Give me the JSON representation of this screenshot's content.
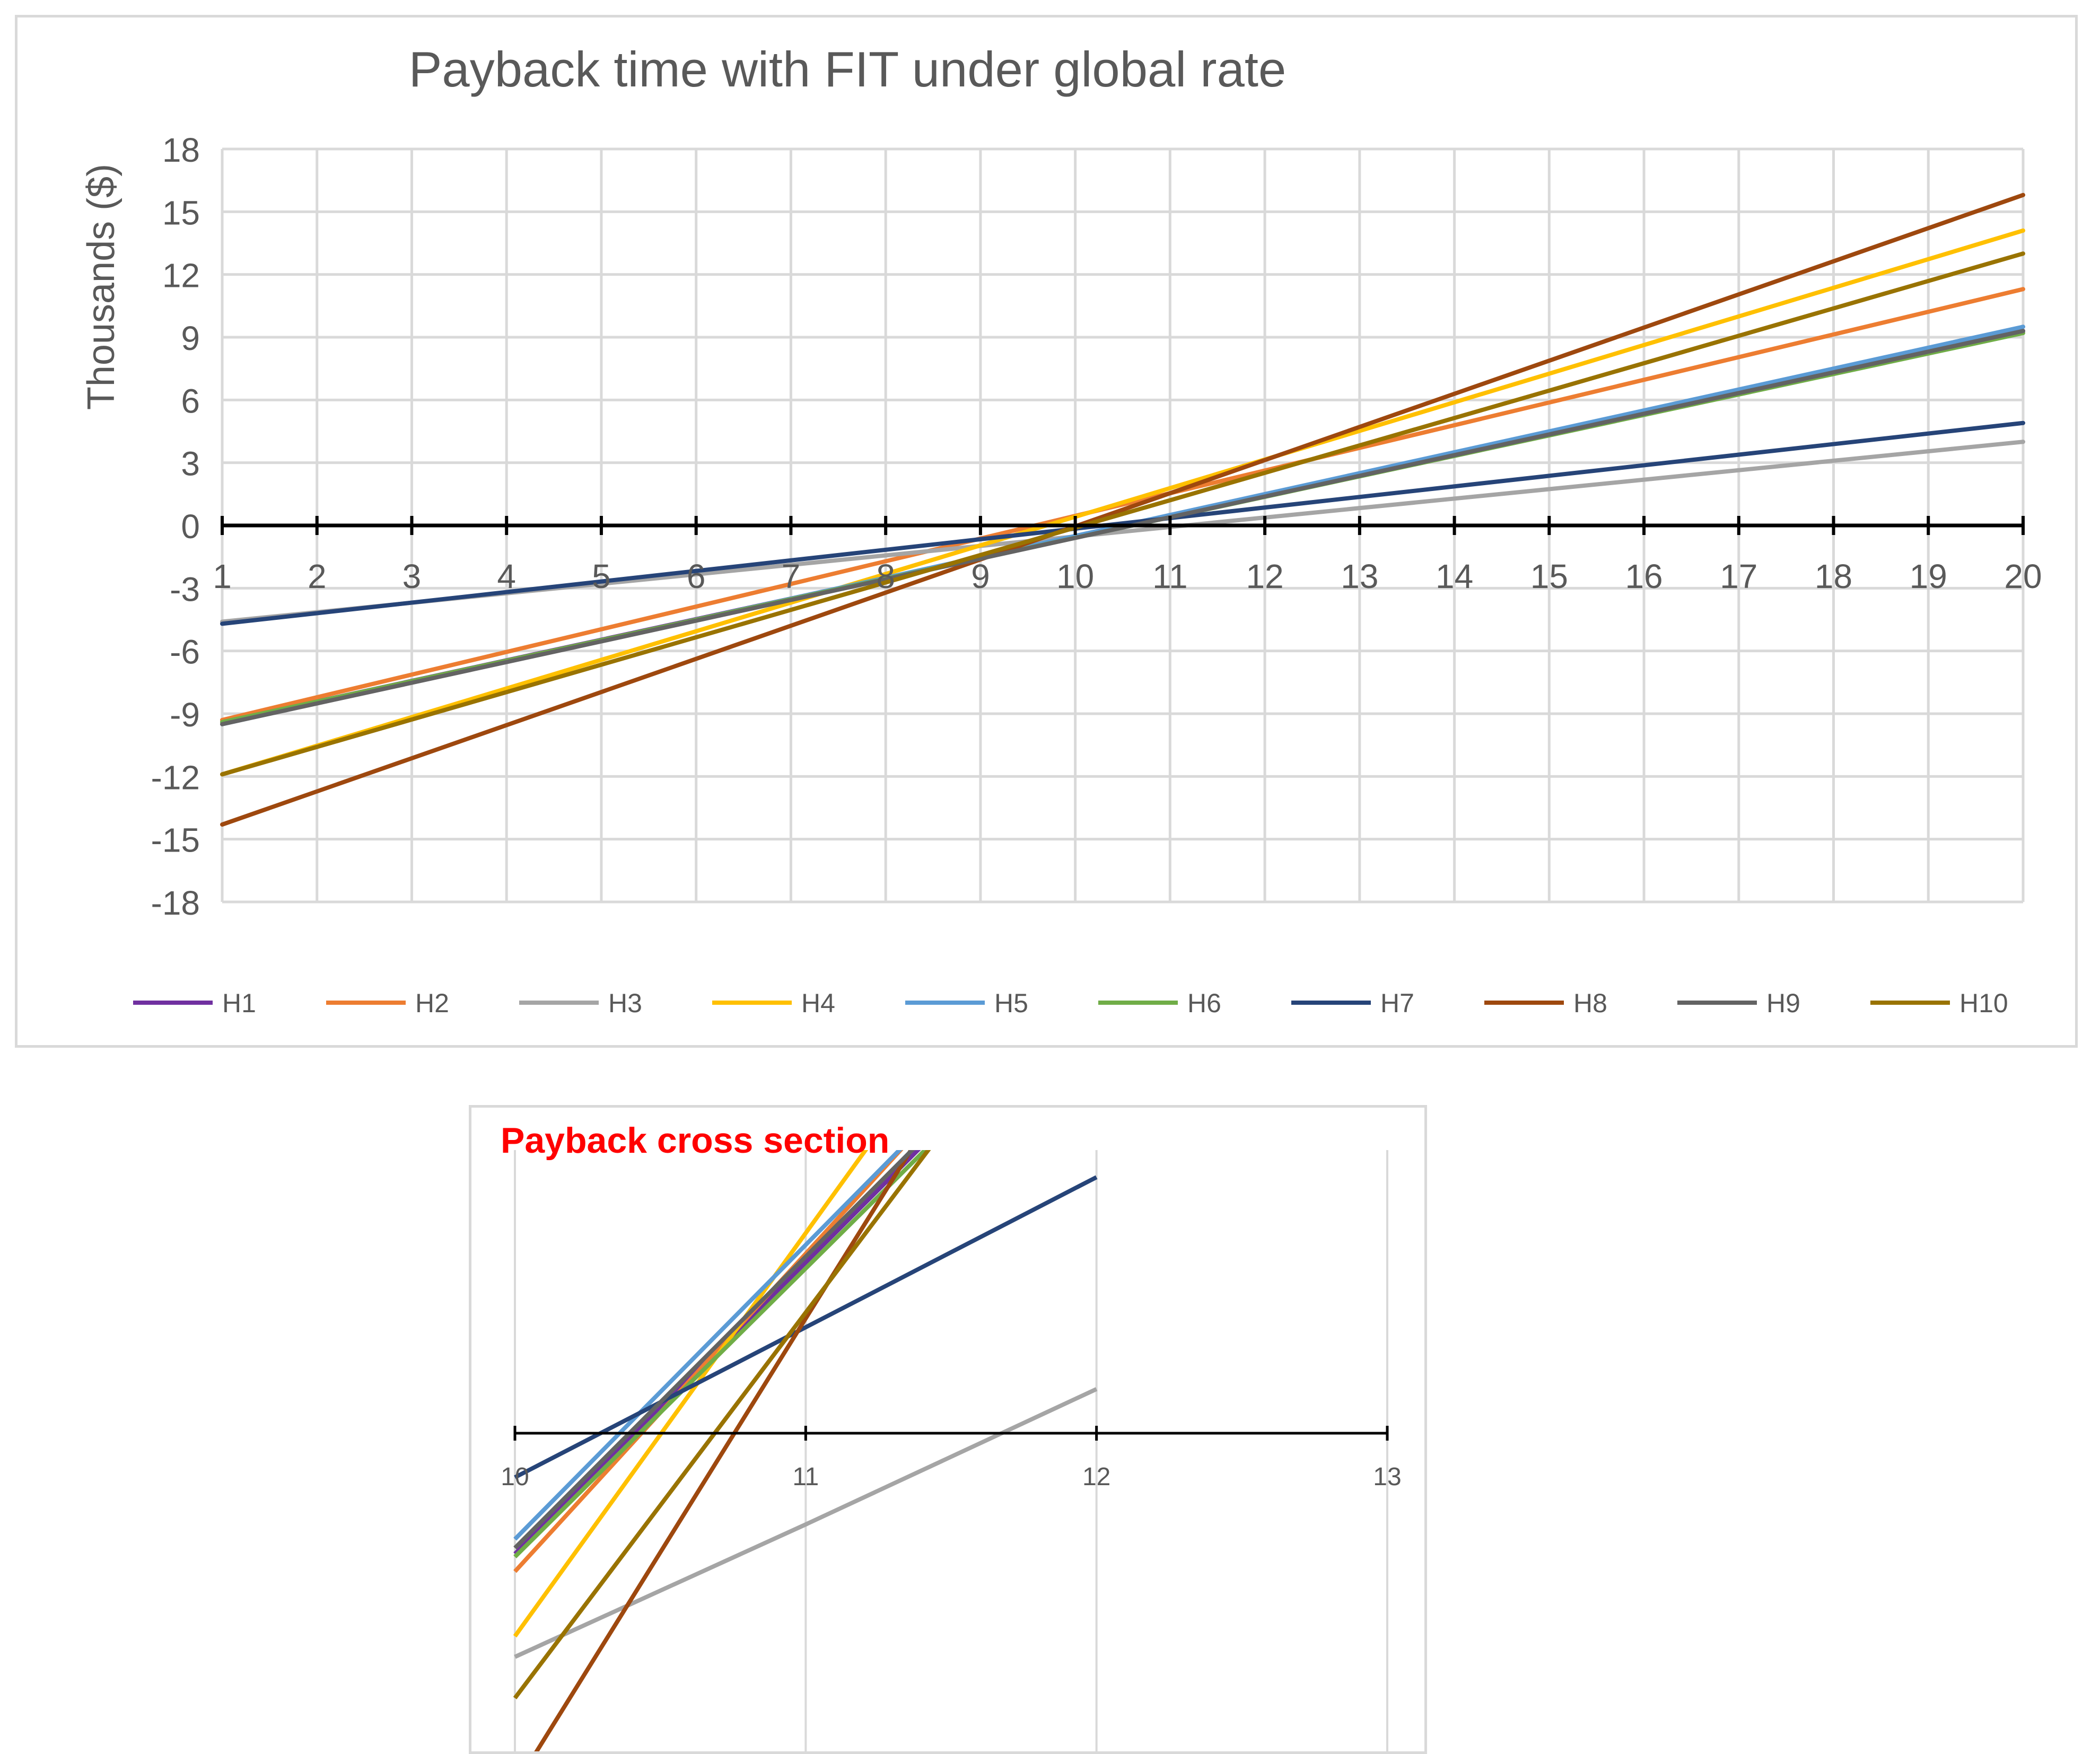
{
  "chart_data": [
    {
      "type": "line",
      "title": "Payback time with FIT under global rate",
      "xlabel": "",
      "ylabel": "Thousands ($)",
      "x": [
        1,
        20
      ],
      "xlim": [
        1,
        20
      ],
      "ylim": [
        -18,
        18
      ],
      "xticks": [
        "1",
        "2",
        "3",
        "4",
        "5",
        "6",
        "7",
        "8",
        "9",
        "10",
        "11",
        "12",
        "13",
        "14",
        "15",
        "16",
        "17",
        "18",
        "19",
        "20"
      ],
      "yticks": [
        "18",
        "15",
        "12",
        "9",
        "6",
        "3",
        "0",
        "-3",
        "-6",
        "-9",
        "-12",
        "-15",
        "-18"
      ],
      "grid": true,
      "legend_position": "bottom",
      "series": [
        {
          "name": "H1",
          "color": "#7030a0",
          "values": [
            -9.4,
            9.3
          ]
        },
        {
          "name": "H2",
          "color": "#ed7d31",
          "values": [
            -9.3,
            11.3
          ]
        },
        {
          "name": "H3",
          "color": "#a5a5a5",
          "values": [
            -4.6,
            4.0
          ]
        },
        {
          "name": "H4",
          "color": "#ffc000",
          "values": [
            -11.9,
            14.1
          ]
        },
        {
          "name": "H5",
          "color": "#5b9bd5",
          "values": [
            -9.5,
            9.5
          ]
        },
        {
          "name": "H6",
          "color": "#70ad47",
          "values": [
            -9.4,
            9.2
          ]
        },
        {
          "name": "H7",
          "color": "#264478",
          "values": [
            -4.7,
            4.9
          ]
        },
        {
          "name": "H8",
          "color": "#9e480e",
          "values": [
            -14.3,
            15.8
          ]
        },
        {
          "name": "H9",
          "color": "#636363",
          "values": [
            -9.5,
            9.3
          ]
        },
        {
          "name": "H10",
          "color": "#997300",
          "values": [
            -11.9,
            13.0
          ]
        }
      ]
    },
    {
      "type": "line",
      "title": "Payback cross section",
      "xlabel": "",
      "ylabel": "",
      "xlim": [
        10,
        13
      ],
      "xticks": [
        "10",
        "11",
        "12",
        "13"
      ],
      "grid": true,
      "series": [
        {
          "name": "H1",
          "color": "#7030a0",
          "values": [
            -0.41,
            0.58,
            1.57
          ]
        },
        {
          "name": "H2",
          "color": "#ed7d31",
          "values": [
            -0.47,
            0.61,
            1.69
          ]
        },
        {
          "name": "H3",
          "color": "#a5a5a5",
          "values": [
            -0.76,
            -0.31,
            0.15
          ]
        },
        {
          "name": "H4",
          "color": "#ffc000",
          "values": [
            -0.69,
            0.68,
            2.05
          ]
        },
        {
          "name": "H5",
          "color": "#5b9bd5",
          "values": [
            -0.36,
            0.64,
            1.64
          ]
        },
        {
          "name": "H6",
          "color": "#70ad47",
          "values": [
            -0.42,
            0.56,
            1.54
          ]
        },
        {
          "name": "H7",
          "color": "#264478",
          "values": [
            -0.15,
            0.36,
            0.87
          ]
        },
        {
          "name": "H8",
          "color": "#9e480e",
          "values": [
            -1.2,
            0.39,
            1.97
          ]
        },
        {
          "name": "H9",
          "color": "#636363",
          "values": [
            -0.39,
            0.6,
            1.59
          ]
        },
        {
          "name": "H10",
          "color": "#997300",
          "values": [
            -0.9,
            0.41,
            1.72
          ]
        }
      ]
    }
  ]
}
